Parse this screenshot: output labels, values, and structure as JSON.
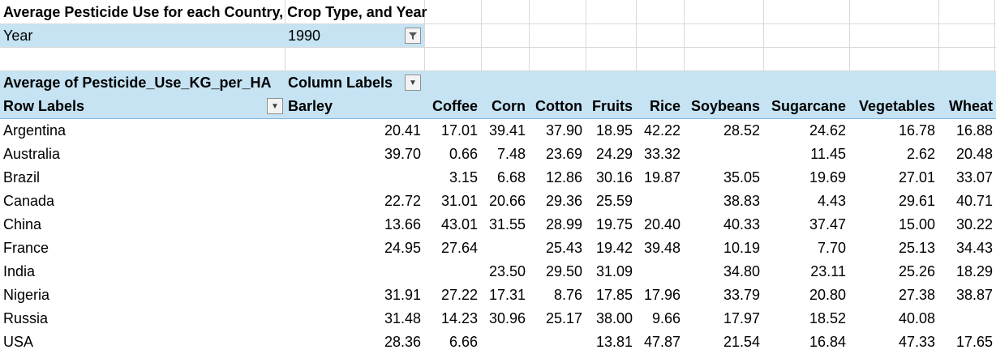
{
  "title": "Average Pesticide Use for each Country, Crop Type, and Year",
  "filter": {
    "label": "Year",
    "value": "1990",
    "icon": "filter-dropdown-icon"
  },
  "pivot": {
    "values_label": "Average of Pesticide_Use_KG_per_HA",
    "column_labels": "Column Labels",
    "row_labels": "Row Labels",
    "columns": [
      "Barley",
      "Coffee",
      "Corn",
      "Cotton",
      "Fruits",
      "Rice",
      "Soybeans",
      "Sugarcane",
      "Vegetables",
      "Wheat"
    ],
    "rows": [
      {
        "label": "Argentina",
        "values": [
          "20.41",
          "17.01",
          "39.41",
          "37.90",
          "18.95",
          "42.22",
          "28.52",
          "24.62",
          "16.78",
          "16.88"
        ]
      },
      {
        "label": "Australia",
        "values": [
          "39.70",
          "0.66",
          "7.48",
          "23.69",
          "24.29",
          "33.32",
          "",
          "11.45",
          "2.62",
          "20.48"
        ]
      },
      {
        "label": "Brazil",
        "values": [
          "",
          "3.15",
          "6.68",
          "12.86",
          "30.16",
          "19.87",
          "35.05",
          "19.69",
          "27.01",
          "33.07"
        ]
      },
      {
        "label": "Canada",
        "values": [
          "22.72",
          "31.01",
          "20.66",
          "29.36",
          "25.59",
          "",
          "38.83",
          "4.43",
          "29.61",
          "40.71"
        ]
      },
      {
        "label": "China",
        "values": [
          "13.66",
          "43.01",
          "31.55",
          "28.99",
          "19.75",
          "20.40",
          "40.33",
          "37.47",
          "15.00",
          "30.22"
        ]
      },
      {
        "label": "France",
        "values": [
          "24.95",
          "27.64",
          "",
          "25.43",
          "19.42",
          "39.48",
          "10.19",
          "7.70",
          "25.13",
          "34.43"
        ]
      },
      {
        "label": "India",
        "values": [
          "",
          "",
          "23.50",
          "29.50",
          "31.09",
          "",
          "34.80",
          "23.11",
          "25.26",
          "18.29"
        ]
      },
      {
        "label": "Nigeria",
        "values": [
          "31.91",
          "27.22",
          "17.31",
          "8.76",
          "17.85",
          "17.96",
          "33.79",
          "20.80",
          "27.38",
          "38.87"
        ]
      },
      {
        "label": "Russia",
        "values": [
          "31.48",
          "14.23",
          "30.96",
          "25.17",
          "38.00",
          "9.66",
          "17.97",
          "18.52",
          "40.08",
          ""
        ]
      },
      {
        "label": "USA",
        "values": [
          "28.36",
          "6.66",
          "",
          "",
          "13.81",
          "47.87",
          "21.54",
          "16.84",
          "47.33",
          "17.65"
        ]
      }
    ]
  },
  "colors": {
    "header_band": "#c5e3f3",
    "gridline": "#d9d9d9"
  }
}
